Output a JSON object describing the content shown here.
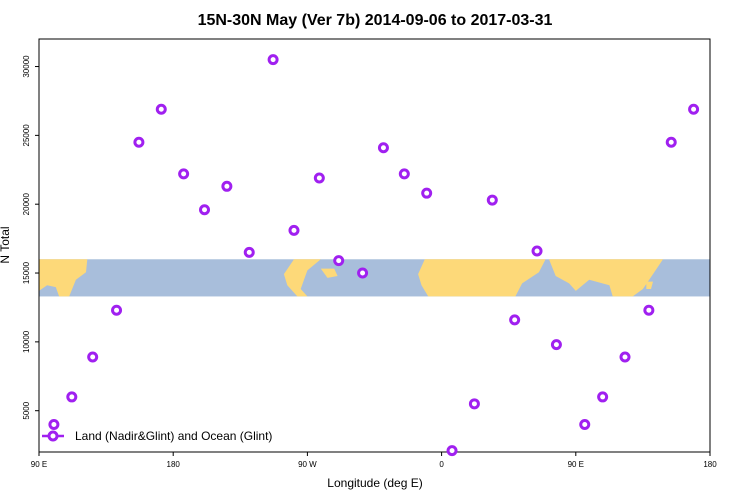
{
  "chart_data": {
    "type": "scatter",
    "title": "15N-30N May (Ver 7b)   2014-09-06 to 2017-03-31",
    "xlabel": "Longitude (deg E)",
    "ylabel": "N Total",
    "xlim": [
      90,
      540
    ],
    "ylim": [
      2000,
      32000
    ],
    "x_ticks": [
      {
        "value": 90,
        "label": "90 E"
      },
      {
        "value": 180,
        "label": "180"
      },
      {
        "value": 270,
        "label": "90 W"
      },
      {
        "value": 360,
        "label": "0"
      },
      {
        "value": 450,
        "label": "90 E"
      },
      {
        "value": 540,
        "label": "180"
      }
    ],
    "y_ticks": [
      {
        "value": 5000,
        "label": "5000"
      },
      {
        "value": 10000,
        "label": "10000"
      },
      {
        "value": 15000,
        "label": "15000"
      },
      {
        "value": 20000,
        "label": "20000"
      },
      {
        "value": 25000,
        "label": "25000"
      },
      {
        "value": 30000,
        "label": "30000"
      }
    ],
    "map_band": {
      "lat_range": "15N-30N",
      "y_range": [
        13300,
        16000
      ],
      "ocean_color": "#a8bedb",
      "land_color": "#fdd979"
    },
    "series": [
      {
        "name": "Land (Nadir&Glint) and Ocean (Glint)",
        "color": "#a020f0",
        "points": [
          {
            "x": 100,
            "y": 4000
          },
          {
            "x": 112,
            "y": 6000
          },
          {
            "x": 126,
            "y": 8900
          },
          {
            "x": 142,
            "y": 12300
          },
          {
            "x": 157,
            "y": 24500
          },
          {
            "x": 172,
            "y": 26900
          },
          {
            "x": 187,
            "y": 22200
          },
          {
            "x": 201,
            "y": 19600
          },
          {
            "x": 216,
            "y": 21300
          },
          {
            "x": 231,
            "y": 16500
          },
          {
            "x": 247,
            "y": 30500
          },
          {
            "x": 261,
            "y": 18100
          },
          {
            "x": 278,
            "y": 21900
          },
          {
            "x": 291,
            "y": 15900
          },
          {
            "x": 307,
            "y": 15000
          },
          {
            "x": 321,
            "y": 24100
          },
          {
            "x": 335,
            "y": 22200
          },
          {
            "x": 350,
            "y": 20800
          },
          {
            "x": 367,
            "y": 2100
          },
          {
            "x": 382,
            "y": 5500
          },
          {
            "x": 394,
            "y": 20300
          },
          {
            "x": 409,
            "y": 11600
          },
          {
            "x": 424,
            "y": 16600
          },
          {
            "x": 437,
            "y": 9800
          },
          {
            "x": 456,
            "y": 4000
          },
          {
            "x": 468,
            "y": 6000
          },
          {
            "x": 483,
            "y": 8900
          },
          {
            "x": 499,
            "y": 12300
          },
          {
            "x": 514,
            "y": 24500
          },
          {
            "x": 529,
            "y": 26900
          }
        ]
      }
    ],
    "legend": "bottom-left"
  }
}
